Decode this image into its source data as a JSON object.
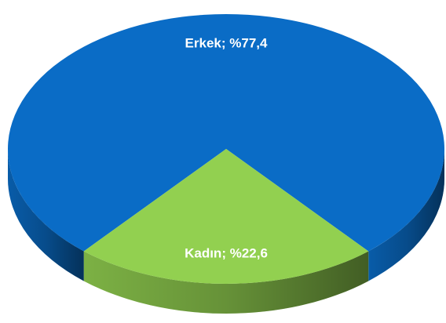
{
  "chart_data": {
    "type": "pie",
    "values": [
      77.4,
      22.6
    ],
    "value_labels": [
      "Erkek; %77,4",
      "Kadın; %22,6"
    ],
    "colors": [
      "#0a6cc6",
      "#92d050"
    ]
  }
}
